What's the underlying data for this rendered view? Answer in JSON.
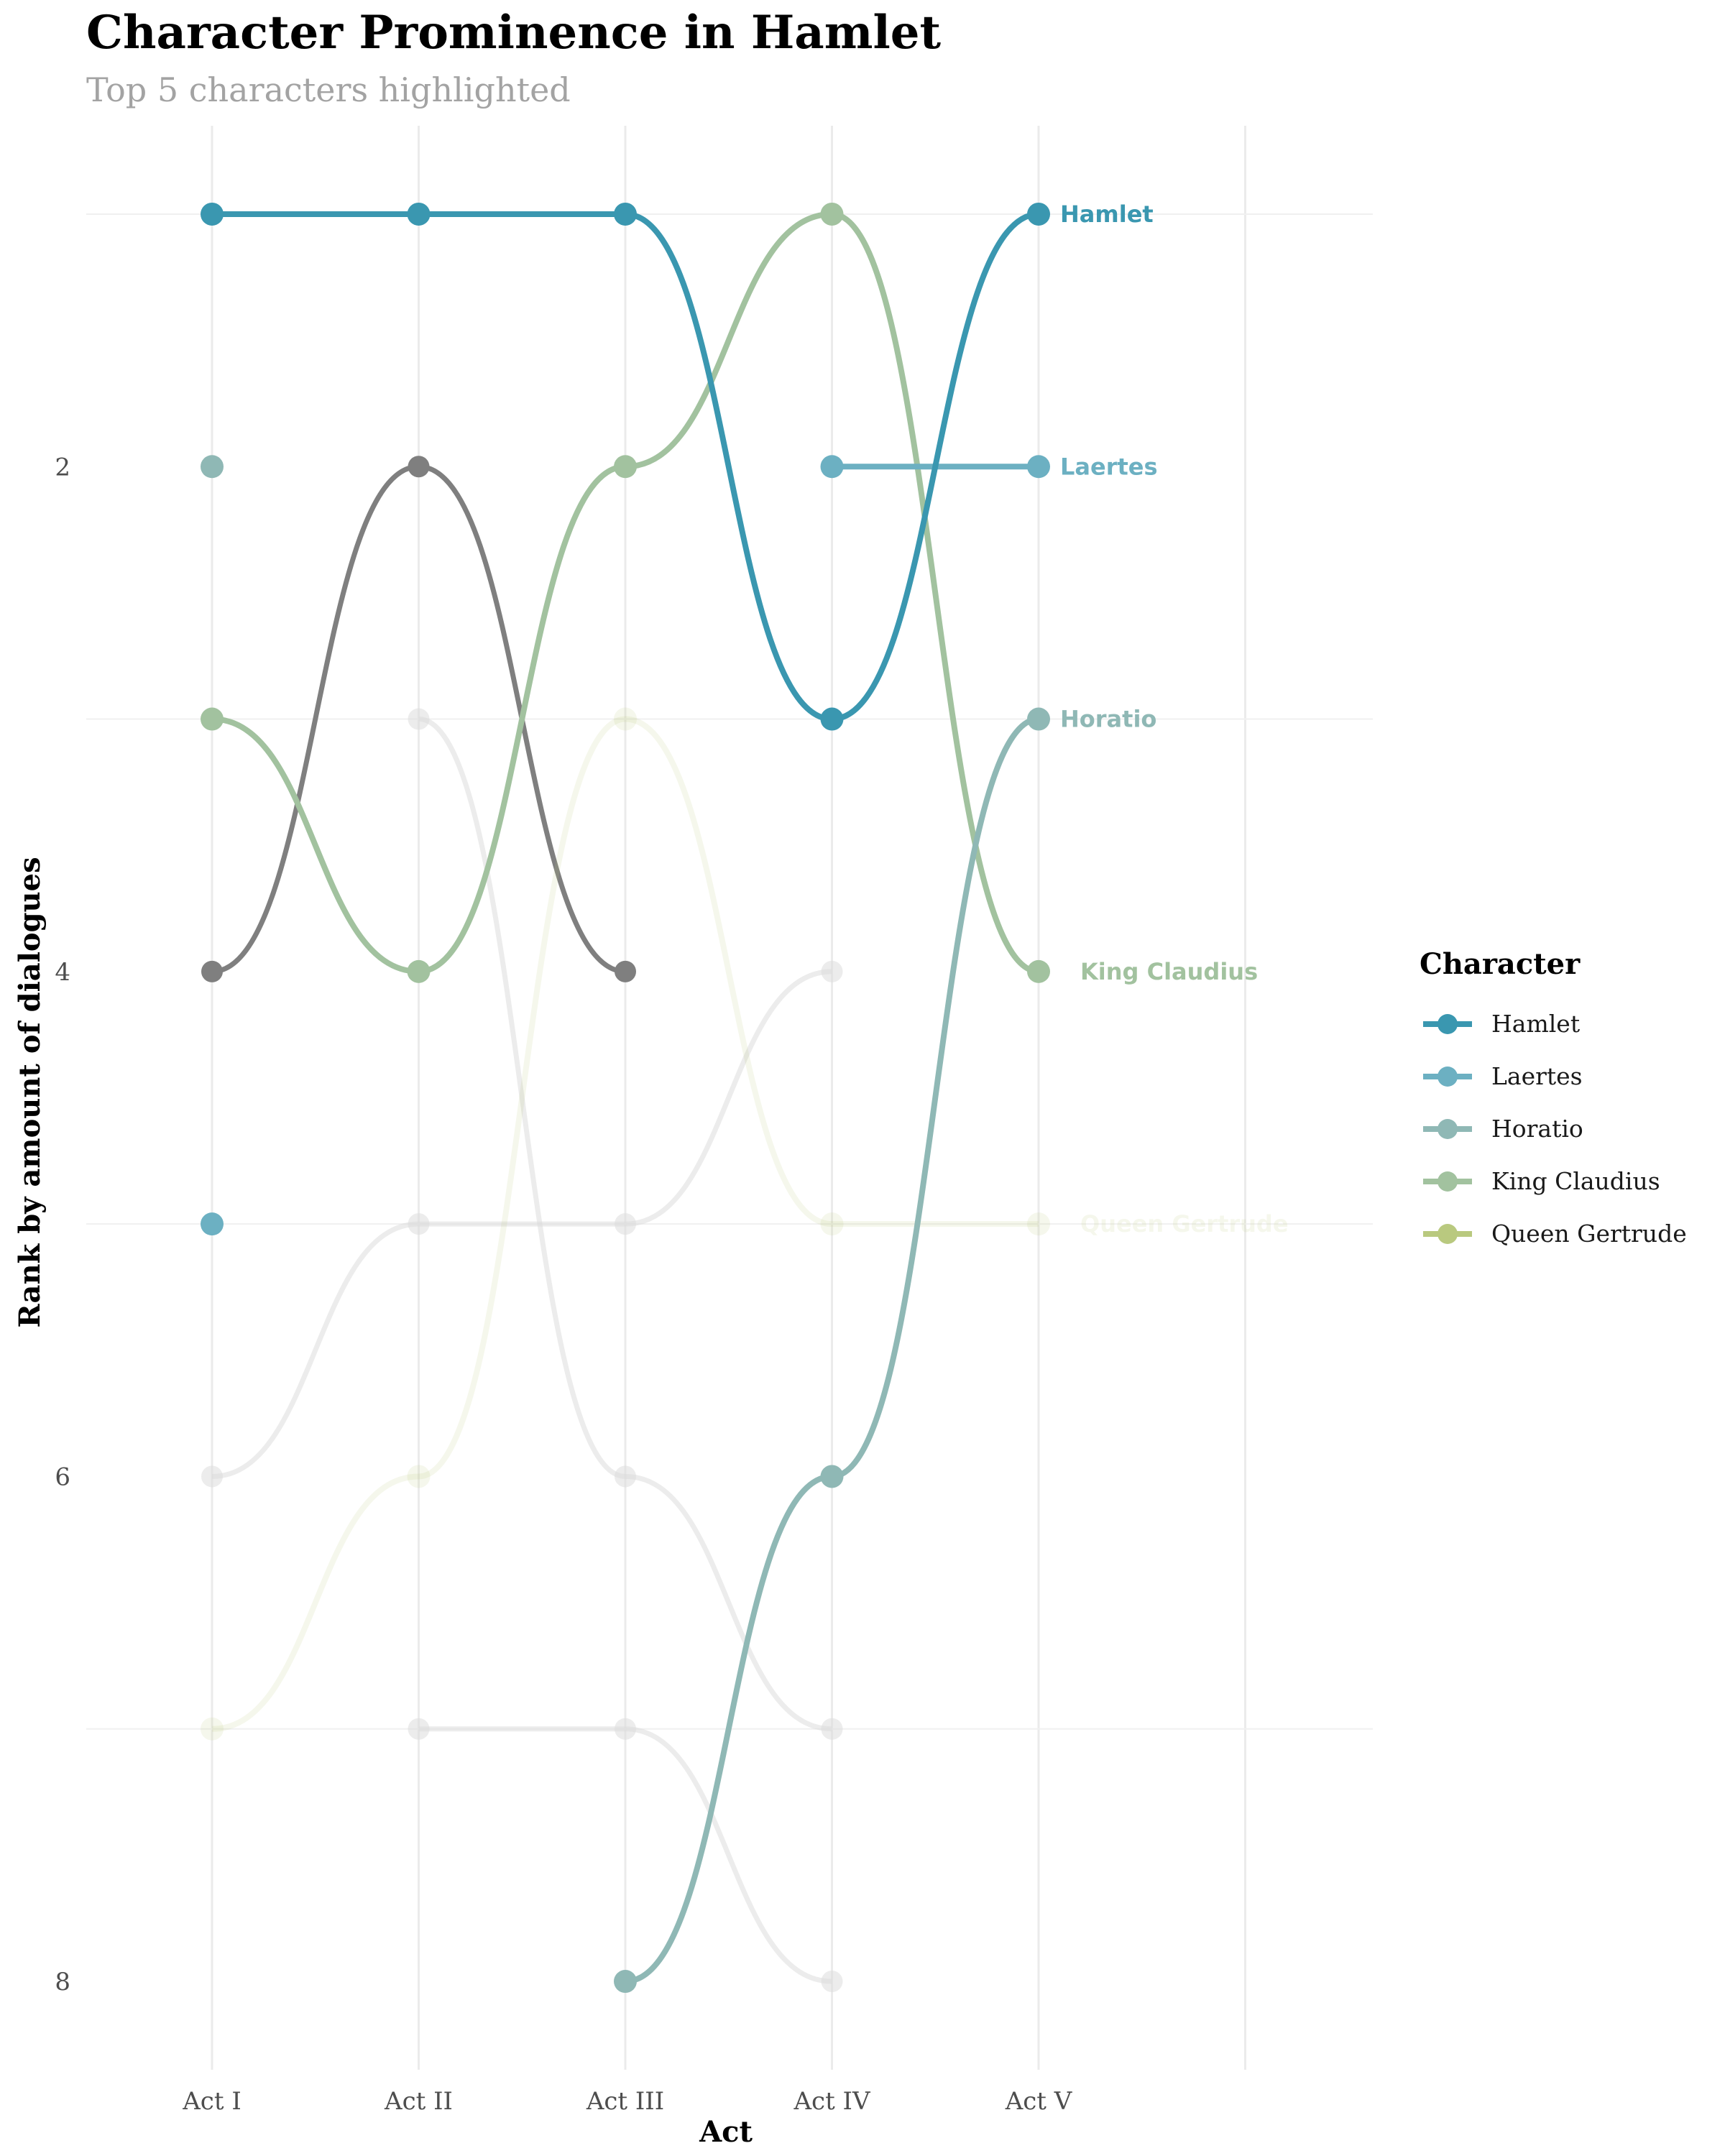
{
  "chart_data": {
    "type": "line",
    "title": "Character Prominence in Hamlet",
    "subtitle": "Top 5 characters highlighted",
    "xlabel": "Act",
    "ylabel": "Rank by amount of dialogues",
    "categories": [
      "Act I",
      "Act II",
      "Act III",
      "Act IV",
      "Act V"
    ],
    "y_ticks": [
      "2",
      "4",
      "6",
      "8"
    ],
    "y_tick_values": [
      2,
      4,
      6,
      8
    ],
    "ylim": [
      8.35,
      0.65
    ],
    "y_reversed": true,
    "grid": true,
    "legend_position": "right",
    "legend_title": "Character",
    "series": [
      {
        "name": "Hamlet",
        "color": "#3a97b0",
        "highlight": true,
        "values": [
          1,
          1,
          1,
          3,
          1
        ]
      },
      {
        "name": "Laertes",
        "color": "#6cb0c2",
        "highlight": true,
        "values": [
          5,
          null,
          null,
          2,
          2
        ]
      },
      {
        "name": "Horatio",
        "color": "#8fb8b5",
        "highlight": true,
        "values": [
          2,
          null,
          8,
          6,
          3
        ]
      },
      {
        "name": "King Claudius",
        "color": "#a2c29f",
        "highlight": true,
        "values": [
          3,
          4,
          2,
          1,
          4
        ]
      },
      {
        "name": "Queen Gertrude",
        "color": "#b9c97f",
        "highlight": true,
        "faded": true,
        "values": [
          7,
          6,
          3,
          5,
          5
        ]
      }
    ],
    "other_series": [
      {
        "color": "#7f7f7f",
        "opacity": 1.0,
        "values": [
          4,
          2,
          4,
          null,
          null
        ]
      },
      {
        "color": "#dddddd",
        "opacity": 0.55,
        "values": [
          6,
          5,
          5,
          4,
          null
        ]
      },
      {
        "color": "#dddddd",
        "opacity": 0.55,
        "values": [
          null,
          3,
          6,
          7,
          null
        ]
      },
      {
        "color": "#dddddd",
        "opacity": 0.55,
        "values": [
          null,
          7,
          7,
          8,
          null
        ]
      }
    ]
  }
}
